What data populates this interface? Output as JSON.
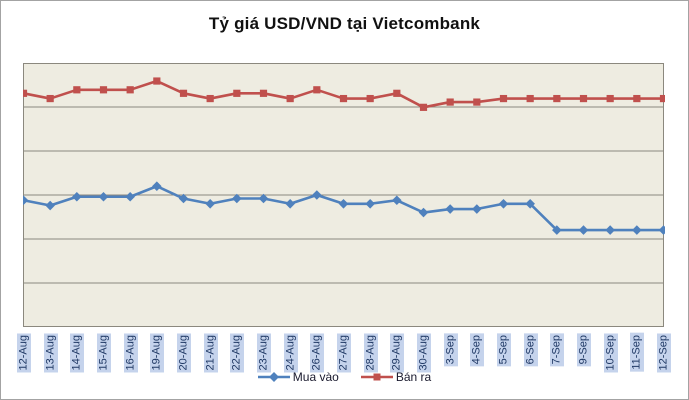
{
  "window": {
    "background": "#FFFFFF",
    "border_color": "#A3A3A3"
  },
  "chart_data": {
    "type": "line",
    "title": "Tỷ giá USD/VND tại Vietcombank",
    "xlabel": "",
    "ylabel": "",
    "categories": [
      "12-Aug",
      "13-Aug",
      "14-Aug",
      "15-Aug",
      "16-Aug",
      "19-Aug",
      "20-Aug",
      "21-Aug",
      "22-Aug",
      "23-Aug",
      "24-Aug",
      "26-Aug",
      "27-Aug",
      "28-Aug",
      "29-Aug",
      "30-Aug",
      "3-Sep",
      "4-Sep",
      "5-Sep",
      "6-Sep",
      "7-Sep",
      "9-Sep",
      "10-Sep",
      "11-Sep",
      "12-Sep"
    ],
    "series": [
      {
        "name": "Mua vào",
        "color": "#4F81BD",
        "marker": "diamond",
        "values": [
          21097,
          21094,
          21099,
          21099,
          21099,
          21105,
          21098,
          21095,
          21098,
          21098,
          21095,
          21100,
          21095,
          21095,
          21097,
          21090,
          21092,
          21092,
          21095,
          21095,
          21080,
          21080,
          21080,
          21080,
          21080
        ]
      },
      {
        "name": "Bán ra",
        "color": "#C0504D",
        "marker": "square",
        "values": [
          21158,
          21155,
          21160,
          21160,
          21160,
          21165,
          21158,
          21155,
          21158,
          21158,
          21155,
          21160,
          21155,
          21155,
          21158,
          21150,
          21153,
          21153,
          21155,
          21155,
          21155,
          21155,
          21155,
          21155,
          21155
        ]
      }
    ],
    "ylim": [
      21025,
      21175
    ],
    "gridline_step": 25,
    "grid": true,
    "y_axis_labels_visible": false,
    "legend_position": "bottom",
    "styles": {
      "plot_bg": "#EEECE1",
      "gridline_color": "#8B887E",
      "xlabel_bg": "#C5D3EC",
      "xlabel_color": "#1F3864",
      "legend_text_color": "#1A1A2E"
    }
  }
}
